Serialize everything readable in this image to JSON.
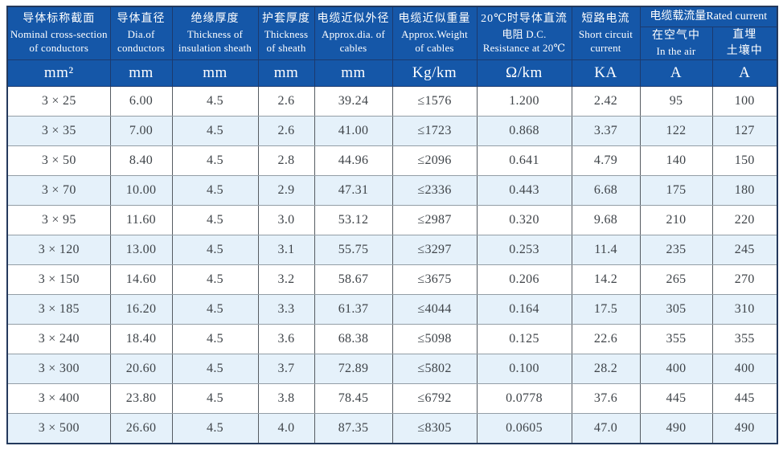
{
  "table": {
    "group_label": "电缆载流量Rated current",
    "columns": [
      {
        "zh": "导体标称截面",
        "en1": "Nominal cross-section",
        "en2": "of conductors"
      },
      {
        "zh": "导体直径",
        "en1": "Dia.of",
        "en2": "conductors"
      },
      {
        "zh": "绝缘厚度",
        "en1": "Thickness of",
        "en2": "insulation sheath"
      },
      {
        "zh": "护套厚度",
        "en1": "Thickness",
        "en2": "of sheath"
      },
      {
        "zh": "电缆近似外径",
        "en1": "Approx.dia. of",
        "en2": "cables"
      },
      {
        "zh": "电缆近似重量",
        "en1": "Approx.Weight",
        "en2": "of cables"
      },
      {
        "zh": "20℃时导体直流",
        "en1": "电阻 D.C.",
        "en2": "Resistance at 20℃"
      },
      {
        "zh": "短路电流",
        "en1": "Short circuit",
        "en2": "current"
      },
      {
        "zh": "在空气中",
        "en1": "In the air"
      },
      {
        "zh": "直埋",
        "en1": "土壤中"
      }
    ],
    "units": [
      "mm²",
      "mm",
      "mm",
      "mm",
      "mm",
      "Kg/km",
      "Ω/km",
      "KA",
      "A",
      "A"
    ],
    "rows": [
      [
        "3 × 25",
        "6.00",
        "4.5",
        "2.6",
        "39.24",
        "≤1576",
        "1.200",
        "2.42",
        "95",
        "100"
      ],
      [
        "3 × 35",
        "7.00",
        "4.5",
        "2.6",
        "41.00",
        "≤1723",
        "0.868",
        "3.37",
        "122",
        "127"
      ],
      [
        "3 × 50",
        "8.40",
        "4.5",
        "2.8",
        "44.96",
        "≤2096",
        "0.641",
        "4.79",
        "140",
        "150"
      ],
      [
        "3 × 70",
        "10.00",
        "4.5",
        "2.9",
        "47.31",
        "≤2336",
        "0.443",
        "6.68",
        "175",
        "180"
      ],
      [
        "3 × 95",
        "11.60",
        "4.5",
        "3.0",
        "53.12",
        "≤2987",
        "0.320",
        "9.68",
        "210",
        "220"
      ],
      [
        "3 × 120",
        "13.00",
        "4.5",
        "3.1",
        "55.75",
        "≤3297",
        "0.253",
        "11.4",
        "235",
        "245"
      ],
      [
        "3 × 150",
        "14.60",
        "4.5",
        "3.2",
        "58.67",
        "≤3675",
        "0.206",
        "14.2",
        "265",
        "270"
      ],
      [
        "3 × 185",
        "16.20",
        "4.5",
        "3.3",
        "61.37",
        "≤4044",
        "0.164",
        "17.5",
        "305",
        "310"
      ],
      [
        "3 × 240",
        "18.40",
        "4.5",
        "3.6",
        "68.38",
        "≤5098",
        "0.125",
        "22.6",
        "355",
        "355"
      ],
      [
        "3 × 300",
        "20.60",
        "4.5",
        "3.7",
        "72.89",
        "≤5802",
        "0.100",
        "28.2",
        "400",
        "400"
      ],
      [
        "3 × 400",
        "23.80",
        "4.5",
        "3.8",
        "78.45",
        "≤6792",
        "0.0778",
        "37.6",
        "445",
        "445"
      ],
      [
        "3 × 500",
        "26.60",
        "4.5",
        "4.0",
        "87.35",
        "≤8305",
        "0.0605",
        "47.0",
        "490",
        "490"
      ]
    ]
  },
  "colors": {
    "header_bg": "#1557a8",
    "header_text": "#ffffff",
    "alt_row_bg": "#e5f1fa",
    "row_bg": "#ffffff",
    "outer_border": "#24395c",
    "header_grid": "#1c3a6e",
    "data_grid_vertical": "#565c62",
    "data_grid_horizontal": "#939ea6",
    "data_text": "#3f4449"
  }
}
